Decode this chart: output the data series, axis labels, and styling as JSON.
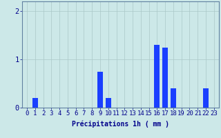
{
  "hours": [
    0,
    1,
    2,
    3,
    4,
    5,
    6,
    7,
    8,
    9,
    10,
    11,
    12,
    13,
    14,
    15,
    16,
    17,
    18,
    19,
    20,
    21,
    22,
    23
  ],
  "values": [
    0,
    0.2,
    0,
    0,
    0,
    0,
    0,
    0,
    0,
    0.75,
    0.2,
    0,
    0,
    0,
    0,
    0,
    1.3,
    1.25,
    0.4,
    0,
    0,
    0,
    0.4,
    0
  ],
  "bar_color": "#1a3fff",
  "background_color": "#cce8e8",
  "grid_color": "#aac8c8",
  "axis_color": "#6080a0",
  "text_color": "#00008b",
  "xlabel": "Précipitations 1h ( mm )",
  "ylim": [
    0,
    2.2
  ],
  "yticks": [
    0,
    1,
    2
  ],
  "label_fontsize": 7,
  "tick_fontsize": 6.5
}
